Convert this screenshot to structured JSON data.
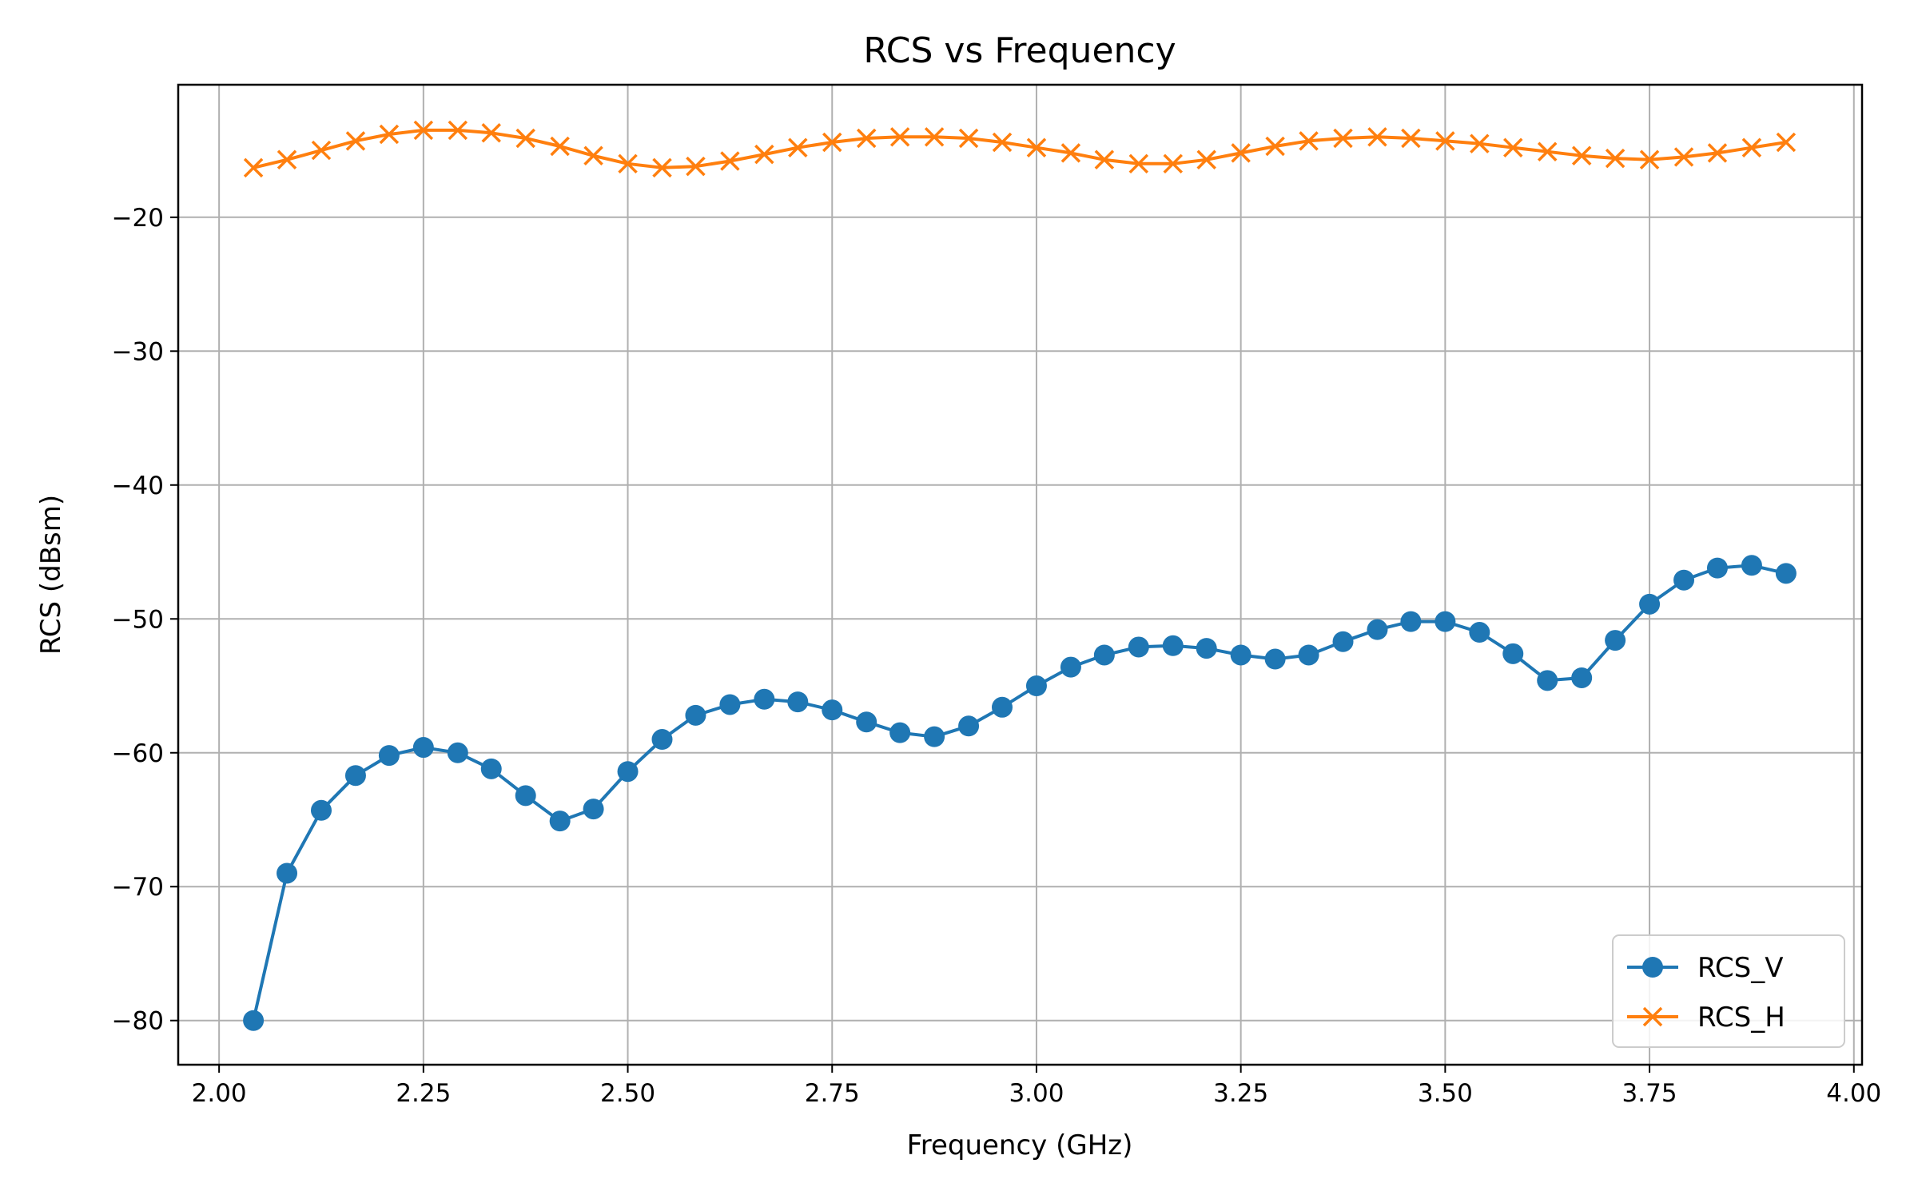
{
  "chart_data": {
    "type": "line",
    "title": "RCS vs Frequency",
    "xlabel": "Frequency (GHz)",
    "ylabel": "RCS (dBsm)",
    "xlim": [
      1.95,
      4.01
    ],
    "ylim": [
      -83.3,
      -10.1
    ],
    "grid": true,
    "legend_position": "lower-right",
    "xticks": [
      2.0,
      2.25,
      2.5,
      2.75,
      3.0,
      3.25,
      3.5,
      3.75,
      4.0
    ],
    "xtick_labels": [
      "2.00",
      "2.25",
      "2.50",
      "2.75",
      "3.00",
      "3.25",
      "3.50",
      "3.75",
      "4.00"
    ],
    "yticks": [
      -80,
      -70,
      -60,
      -50,
      -40,
      -30,
      -20
    ],
    "ytick_labels": [
      "−80",
      "−70",
      "−60",
      "−50",
      "−40",
      "−30",
      "−20"
    ],
    "x": [
      2.042,
      2.083,
      2.125,
      2.167,
      2.208,
      2.25,
      2.292,
      2.333,
      2.375,
      2.417,
      2.458,
      2.5,
      2.542,
      2.583,
      2.625,
      2.667,
      2.708,
      2.75,
      2.792,
      2.833,
      2.875,
      2.917,
      2.958,
      3.0,
      3.042,
      3.083,
      3.125,
      3.167,
      3.208,
      3.25,
      3.292,
      3.333,
      3.375,
      3.417,
      3.458,
      3.5,
      3.542,
      3.583,
      3.625,
      3.667,
      3.708,
      3.75,
      3.792,
      3.833,
      3.875,
      3.917
    ],
    "series": [
      {
        "name": "RCS_V",
        "color": "#1f77b4",
        "marker": "circle",
        "values": [
          -80.0,
          -69.0,
          -64.3,
          -61.7,
          -60.2,
          -59.6,
          -60.0,
          -61.2,
          -63.2,
          -65.1,
          -64.2,
          -61.4,
          -59.0,
          -57.2,
          -56.4,
          -56.0,
          -56.2,
          -56.8,
          -57.7,
          -58.5,
          -58.8,
          -58.0,
          -56.6,
          -55.0,
          -53.6,
          -52.7,
          -52.1,
          -52.0,
          -52.2,
          -52.7,
          -53.0,
          -52.7,
          -51.7,
          -50.8,
          -50.2,
          -50.2,
          -51.0,
          -52.6,
          -54.6,
          -54.4,
          -51.6,
          -48.9,
          -47.1,
          -46.2,
          -46.0,
          -46.6
        ]
      },
      {
        "name": "RCS_H",
        "color": "#ff7f0e",
        "marker": "x",
        "values": [
          -16.3,
          -15.7,
          -15.0,
          -14.3,
          -13.8,
          -13.5,
          -13.5,
          -13.7,
          -14.1,
          -14.7,
          -15.4,
          -16.0,
          -16.3,
          -16.2,
          -15.8,
          -15.3,
          -14.8,
          -14.4,
          -14.1,
          -14.0,
          -14.0,
          -14.1,
          -14.4,
          -14.8,
          -15.2,
          -15.7,
          -16.0,
          -16.0,
          -15.7,
          -15.2,
          -14.7,
          -14.3,
          -14.1,
          -14.0,
          -14.1,
          -14.3,
          -14.5,
          -14.8,
          -15.1,
          -15.4,
          -15.6,
          -15.7,
          -15.5,
          -15.2,
          -14.8,
          -14.4
        ]
      }
    ]
  }
}
